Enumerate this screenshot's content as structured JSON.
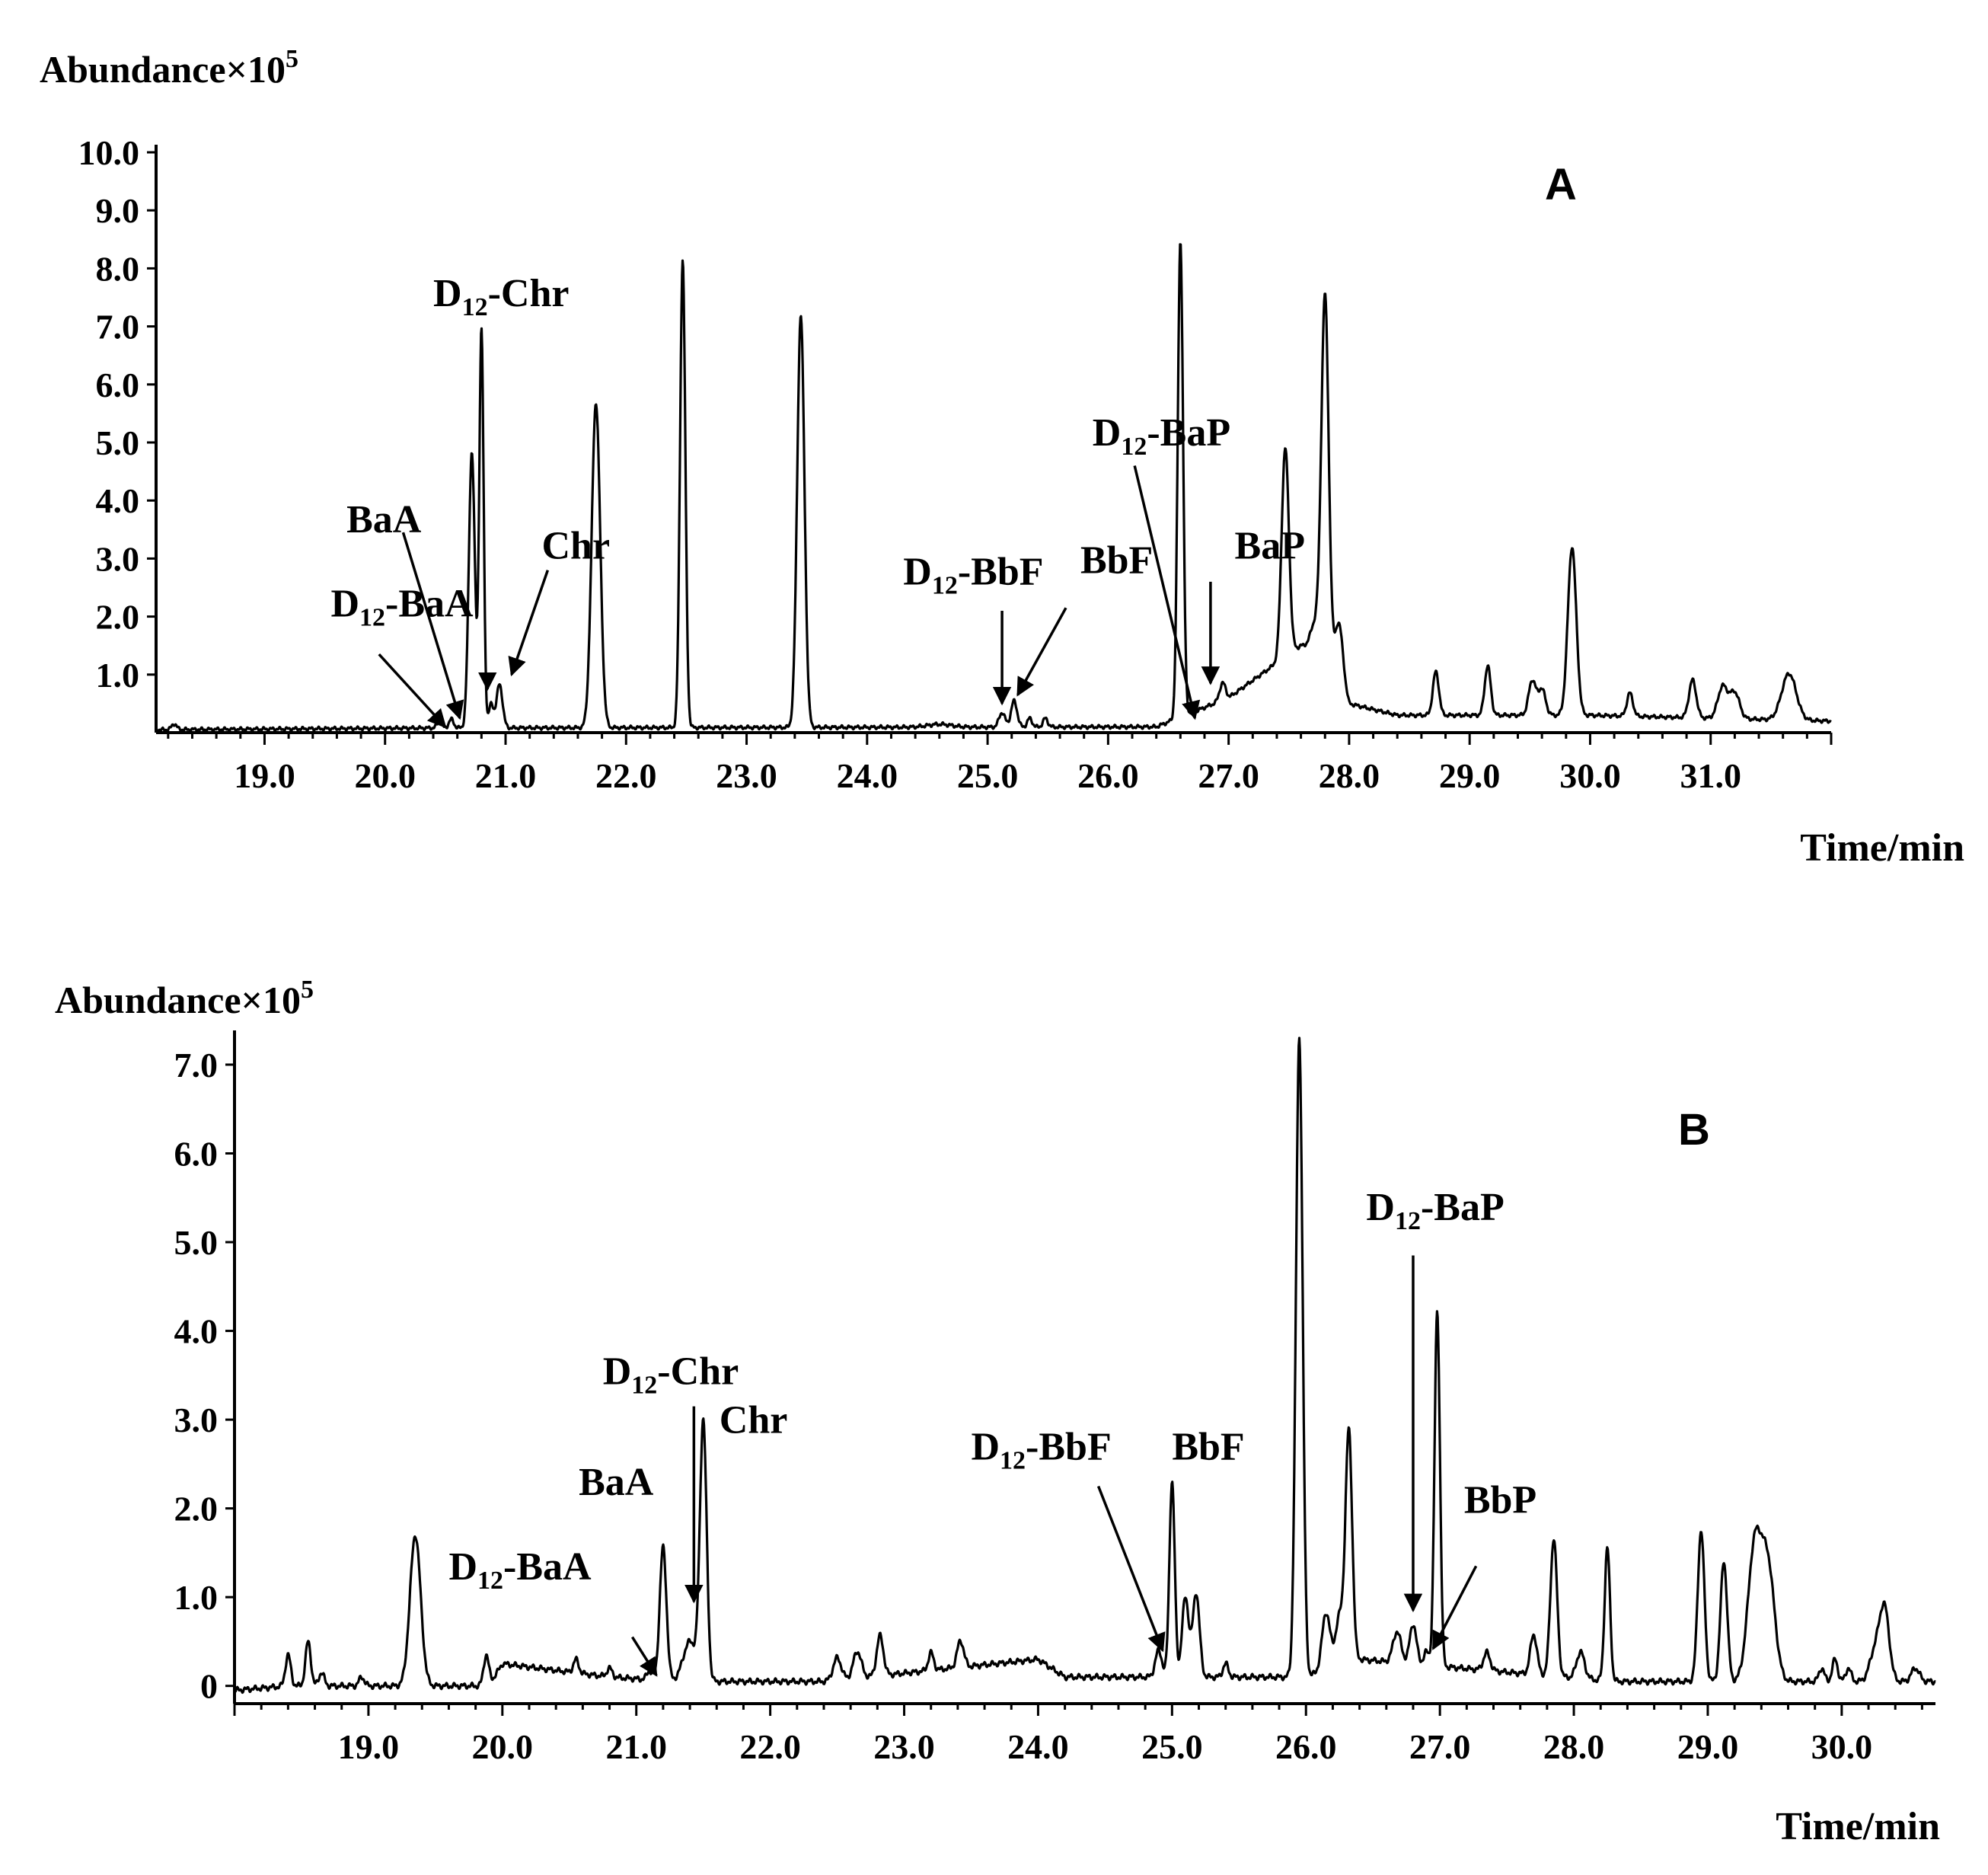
{
  "chart_data": [
    {
      "type": "line",
      "panel_label": "A",
      "ylabel_main": "Abundance×10",
      "ylabel_exp": "5",
      "xlabel": "Time/min",
      "xlim": [
        18.1,
        32.0
      ],
      "ylim": [
        0,
        10.0
      ],
      "yticks": [
        "1.0",
        "2.0",
        "3.0",
        "4.0",
        "5.0",
        "6.0",
        "7.0",
        "8.0",
        "9.0",
        "10.0"
      ],
      "xticks": [
        "19.0",
        "20.0",
        "21.0",
        "22.0",
        "23.0",
        "24.0",
        "25.0",
        "26.0",
        "27.0",
        "28.0",
        "29.0",
        "30.0",
        "31.0"
      ],
      "baseline": [
        [
          18.1,
          0.05
        ],
        [
          20.4,
          0.08
        ],
        [
          26.4,
          0.1
        ],
        [
          27.0,
          0.6
        ],
        [
          27.4,
          1.2
        ],
        [
          27.6,
          1.5
        ],
        [
          27.9,
          1.2
        ],
        [
          28.0,
          0.5
        ],
        [
          28.4,
          0.3
        ],
        [
          30.0,
          0.3
        ],
        [
          32.0,
          0.2
        ]
      ],
      "peaks": [
        {
          "t": 18.25,
          "h": 0.1,
          "w": 0.02
        },
        {
          "t": 20.45,
          "h": 0.1,
          "w": 0.02
        },
        {
          "t": 20.55,
          "h": 0.15,
          "w": 0.02
        },
        {
          "t": 20.72,
          "h": 4.75,
          "w": 0.025
        },
        {
          "t": 20.8,
          "h": 6.85,
          "w": 0.018
        },
        {
          "t": 20.88,
          "h": 0.4,
          "w": 0.02
        },
        {
          "t": 20.95,
          "h": 0.75,
          "w": 0.025
        },
        {
          "t": 21.75,
          "h": 5.6,
          "w": 0.035
        },
        {
          "t": 22.47,
          "h": 8.05,
          "w": 0.022
        },
        {
          "t": 23.45,
          "h": 7.1,
          "w": 0.03
        },
        {
          "t": 24.6,
          "h": 0.05,
          "w": 0.1
        },
        {
          "t": 25.12,
          "h": 0.25,
          "w": 0.025
        },
        {
          "t": 25.22,
          "h": 0.45,
          "w": 0.025
        },
        {
          "t": 25.35,
          "h": 0.15,
          "w": 0.02
        },
        {
          "t": 25.48,
          "h": 0.15,
          "w": 0.02
        },
        {
          "t": 26.6,
          "h": 8.2,
          "w": 0.022
        },
        {
          "t": 26.95,
          "h": 0.3,
          "w": 0.025
        },
        {
          "t": 27.47,
          "h": 3.6,
          "w": 0.03
        },
        {
          "t": 27.72,
          "h": 0.5,
          "w": 0.04
        },
        {
          "t": 27.8,
          "h": 6.2,
          "w": 0.03
        },
        {
          "t": 27.92,
          "h": 0.8,
          "w": 0.03
        },
        {
          "t": 28.72,
          "h": 0.75,
          "w": 0.025
        },
        {
          "t": 29.15,
          "h": 0.85,
          "w": 0.025
        },
        {
          "t": 29.52,
          "h": 0.6,
          "w": 0.03
        },
        {
          "t": 29.6,
          "h": 0.45,
          "w": 0.03
        },
        {
          "t": 29.85,
          "h": 2.9,
          "w": 0.035
        },
        {
          "t": 30.33,
          "h": 0.4,
          "w": 0.025
        },
        {
          "t": 30.85,
          "h": 0.65,
          "w": 0.03
        },
        {
          "t": 31.1,
          "h": 0.55,
          "w": 0.04
        },
        {
          "t": 31.2,
          "h": 0.45,
          "w": 0.04
        },
        {
          "t": 31.65,
          "h": 0.8,
          "w": 0.06
        }
      ],
      "annotations": [
        {
          "sub": true,
          "text": "D",
          "subtext": "12",
          "rest": "-Chr",
          "label_t": 20.4,
          "label_y": 7.35,
          "arrow": false
        },
        {
          "sub": false,
          "text": "BaA",
          "label_t": 19.68,
          "label_y": 3.45,
          "arrow": true,
          "from": [
            20.15,
            3.45
          ],
          "to": [
            20.62,
            0.25
          ]
        },
        {
          "sub": false,
          "text": "Chr",
          "label_t": 21.3,
          "label_y": 3.0,
          "arrow": true,
          "from": [
            21.35,
            2.8
          ],
          "to": [
            21.05,
            1.0
          ]
        },
        {
          "sub": false,
          "text": "",
          "arrow": true,
          "from": [
            20.85,
            0.9
          ],
          "to": [
            20.85,
            0.75
          ]
        },
        {
          "sub": true,
          "text": "D",
          "subtext": "12",
          "rest": "-BaA",
          "label_t": 19.55,
          "label_y": 2.0,
          "arrow": true,
          "from": [
            19.95,
            1.35
          ],
          "to": [
            20.5,
            0.1
          ]
        },
        {
          "sub": true,
          "text": "D",
          "subtext": "12",
          "rest": "-BbF",
          "label_t": 24.3,
          "label_y": 2.55,
          "arrow": true,
          "from": [
            25.12,
            2.1
          ],
          "to": [
            25.12,
            0.5
          ]
        },
        {
          "sub": false,
          "text": "BbF",
          "label_t": 25.77,
          "label_y": 2.75,
          "arrow": true,
          "from": [
            25.65,
            2.15
          ],
          "to": [
            25.25,
            0.65
          ]
        },
        {
          "sub": true,
          "text": "D",
          "subtext": "12",
          "rest": "-BaP",
          "label_t": 25.87,
          "label_y": 4.95,
          "arrow": true,
          "from": [
            26.22,
            4.6
          ],
          "to": [
            26.72,
            0.25
          ]
        },
        {
          "sub": false,
          "text": "BaP",
          "label_t": 27.05,
          "label_y": 3.0,
          "arrow": true,
          "from": [
            26.85,
            2.6
          ],
          "to": [
            26.85,
            0.85
          ]
        }
      ]
    },
    {
      "type": "line",
      "panel_label": "B",
      "ylabel_main": "Abundance×10",
      "ylabel_exp": "5",
      "xlabel": "Time/min",
      "xlim": [
        18.0,
        30.7
      ],
      "ylim": [
        0,
        7.0
      ],
      "yticks": [
        "0",
        "1.0",
        "2.0",
        "3.0",
        "4.0",
        "5.0",
        "6.0",
        "7.0"
      ],
      "xticks": [
        "19.0",
        "20.0",
        "21.0",
        "22.0",
        "23.0",
        "24.0",
        "25.0",
        "26.0",
        "27.0",
        "28.0",
        "29.0",
        "30.0"
      ],
      "baseline": [
        [
          18.0,
          -0.05
        ],
        [
          18.4,
          0.0
        ],
        [
          19.9,
          0.0
        ],
        [
          20.0,
          0.25
        ],
        [
          20.8,
          0.1
        ],
        [
          21.3,
          0.05
        ],
        [
          22.4,
          0.05
        ],
        [
          24.0,
          0.3
        ],
        [
          24.2,
          0.1
        ],
        [
          26.0,
          0.1
        ],
        [
          26.4,
          0.3
        ],
        [
          28.3,
          0.05
        ],
        [
          30.7,
          0.05
        ]
      ],
      "peaks": [
        {
          "t": 18.4,
          "h": 0.35,
          "w": 0.02
        },
        {
          "t": 18.55,
          "h": 0.5,
          "w": 0.02
        },
        {
          "t": 18.65,
          "h": 0.15,
          "w": 0.02
        },
        {
          "t": 18.95,
          "h": 0.1,
          "w": 0.02
        },
        {
          "t": 19.35,
          "h": 1.7,
          "w": 0.04
        },
        {
          "t": 19.88,
          "h": 0.35,
          "w": 0.02
        },
        {
          "t": 20.55,
          "h": 0.15,
          "w": 0.02
        },
        {
          "t": 20.8,
          "h": 0.1,
          "w": 0.02
        },
        {
          "t": 21.1,
          "h": 0.1,
          "w": 0.02
        },
        {
          "t": 21.2,
          "h": 1.5,
          "w": 0.025
        },
        {
          "t": 21.4,
          "h": 0.45,
          "w": 0.05
        },
        {
          "t": 21.5,
          "h": 2.9,
          "w": 0.025
        },
        {
          "t": 22.5,
          "h": 0.25,
          "w": 0.03
        },
        {
          "t": 22.65,
          "h": 0.3,
          "w": 0.03
        },
        {
          "t": 22.82,
          "h": 0.45,
          "w": 0.025
        },
        {
          "t": 23.2,
          "h": 0.2,
          "w": 0.02
        },
        {
          "t": 23.42,
          "h": 0.3,
          "w": 0.025
        },
        {
          "t": 24.9,
          "h": 0.3,
          "w": 0.025
        },
        {
          "t": 25.0,
          "h": 2.2,
          "w": 0.02
        },
        {
          "t": 25.1,
          "h": 0.9,
          "w": 0.025
        },
        {
          "t": 25.18,
          "h": 0.95,
          "w": 0.025
        },
        {
          "t": 25.4,
          "h": 0.15,
          "w": 0.02
        },
        {
          "t": 25.95,
          "h": 7.2,
          "w": 0.025
        },
        {
          "t": 26.15,
          "h": 0.65,
          "w": 0.03
        },
        {
          "t": 26.25,
          "h": 0.55,
          "w": 0.03
        },
        {
          "t": 26.32,
          "h": 2.6,
          "w": 0.025
        },
        {
          "t": 26.68,
          "h": 0.35,
          "w": 0.03
        },
        {
          "t": 26.8,
          "h": 0.45,
          "w": 0.025
        },
        {
          "t": 26.9,
          "h": 0.15,
          "w": 0.02
        },
        {
          "t": 26.98,
          "h": 4.0,
          "w": 0.02
        },
        {
          "t": 27.35,
          "h": 0.2,
          "w": 0.025
        },
        {
          "t": 27.7,
          "h": 0.45,
          "w": 0.025
        },
        {
          "t": 27.85,
          "h": 1.55,
          "w": 0.025
        },
        {
          "t": 28.05,
          "h": 0.3,
          "w": 0.03
        },
        {
          "t": 28.25,
          "h": 1.5,
          "w": 0.02
        },
        {
          "t": 28.95,
          "h": 1.7,
          "w": 0.025
        },
        {
          "t": 29.12,
          "h": 1.35,
          "w": 0.025
        },
        {
          "t": 29.35,
          "h": 1.5,
          "w": 0.05
        },
        {
          "t": 29.45,
          "h": 1.25,
          "w": 0.05
        },
        {
          "t": 29.85,
          "h": 0.15,
          "w": 0.02
        },
        {
          "t": 29.95,
          "h": 0.25,
          "w": 0.02
        },
        {
          "t": 30.05,
          "h": 0.15,
          "w": 0.02
        },
        {
          "t": 30.25,
          "h": 0.35,
          "w": 0.04
        },
        {
          "t": 30.32,
          "h": 0.8,
          "w": 0.035
        },
        {
          "t": 30.55,
          "h": 0.15,
          "w": 0.03
        }
      ],
      "annotations": [
        {
          "sub": true,
          "text": "D",
          "subtext": "12",
          "rest": "-Chr",
          "label_t": 20.75,
          "label_y": 3.4,
          "arrow": true,
          "from": [
            21.43,
            3.15
          ],
          "to": [
            21.43,
            0.95
          ]
        },
        {
          "sub": false,
          "text": "Chr",
          "label_t": 21.62,
          "label_y": 2.85,
          "arrow": false
        },
        {
          "sub": false,
          "text": "BaA",
          "label_t": 20.57,
          "label_y": 2.15,
          "arrow": false
        },
        {
          "sub": true,
          "text": "D",
          "subtext": "12",
          "rest": "-BaA",
          "label_t": 19.6,
          "label_y": 1.2,
          "arrow": true,
          "from": [
            20.97,
            0.55
          ],
          "to": [
            21.15,
            0.12
          ]
        },
        {
          "sub": true,
          "text": "D",
          "subtext": "12",
          "rest": "-BbF",
          "label_t": 23.5,
          "label_y": 2.55,
          "arrow": true,
          "from": [
            24.45,
            2.25
          ],
          "to": [
            24.93,
            0.4
          ]
        },
        {
          "sub": false,
          "text": "BbF",
          "label_t": 25.0,
          "label_y": 2.55,
          "arrow": false
        },
        {
          "sub": true,
          "text": "D",
          "subtext": "12",
          "rest": "-BaP",
          "label_t": 26.45,
          "label_y": 5.25,
          "arrow": true,
          "from": [
            26.8,
            4.85
          ],
          "to": [
            26.8,
            0.85
          ]
        },
        {
          "sub": false,
          "text": "BbP",
          "label_t": 27.18,
          "label_y": 1.95,
          "arrow": true,
          "from": [
            27.27,
            1.35
          ],
          "to": [
            26.95,
            0.42
          ]
        }
      ]
    }
  ]
}
